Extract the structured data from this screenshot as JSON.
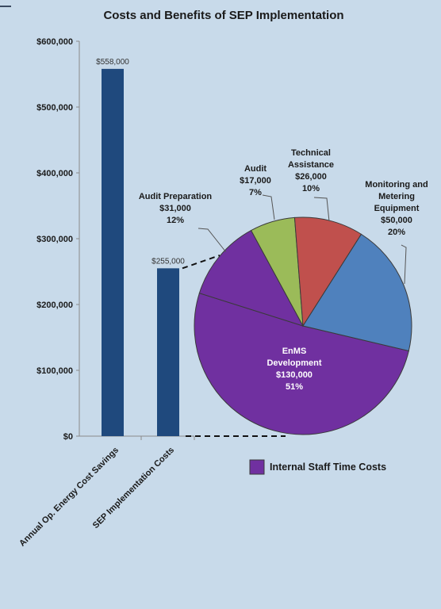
{
  "chart_data": [
    {
      "type": "bar",
      "title": "Costs and Benefits of SEP Implementation",
      "categories": [
        "Annual Op. Energy Cost Savings",
        "SEP Implementation Costs"
      ],
      "values": [
        558000,
        255000
      ],
      "value_labels": [
        "$558,000",
        "$255,000"
      ],
      "ylim": [
        0,
        600000
      ],
      "yticks": [
        0,
        100000,
        200000,
        300000,
        400000,
        500000,
        600000
      ],
      "ytick_labels": [
        "$0",
        "$100,000",
        "$200,000",
        "$300,000",
        "$400,000",
        "$500,000",
        "$600,000"
      ],
      "grid": false,
      "bar_color": "#1f497d"
    },
    {
      "type": "pie",
      "slices": [
        {
          "lines": [
            "EnMS",
            "Development",
            "$130,000",
            "51%"
          ],
          "value": 130000,
          "percent": 51,
          "color": "#7030a0"
        },
        {
          "lines": [
            "Audit Preparation",
            "$31,000",
            "12%"
          ],
          "value": 31000,
          "percent": 12,
          "color": "#7030a0"
        },
        {
          "lines": [
            "Audit",
            "$17,000",
            "7%"
          ],
          "value": 17000,
          "percent": 7,
          "color": "#9bbb59"
        },
        {
          "lines": [
            "Technical",
            "Assistance",
            "$26,000",
            "10%"
          ],
          "value": 26000,
          "percent": 10,
          "color": "#c0504d"
        },
        {
          "lines": [
            "Monitoring and",
            "Metering",
            "Equipment",
            "$50,000",
            "20%"
          ],
          "value": 50000,
          "percent": 20,
          "color": "#4f81bd"
        }
      ],
      "legend": {
        "label": "Internal Staff Time Costs",
        "color": "#7030a0",
        "placement": "bottom-right"
      }
    }
  ]
}
